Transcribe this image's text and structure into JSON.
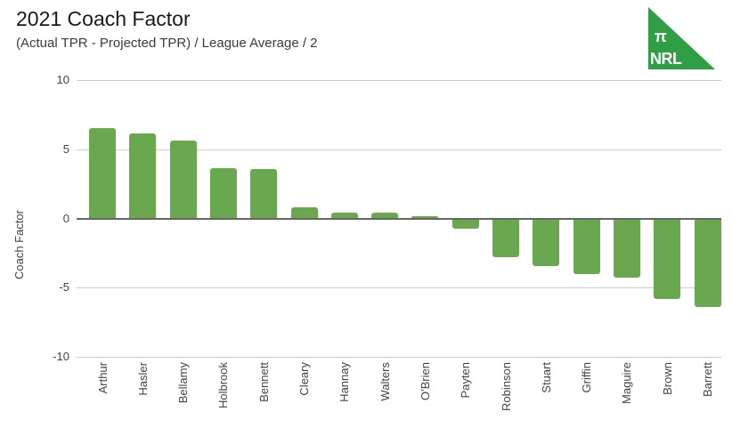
{
  "header": {
    "title": "2021 Coach Factor",
    "subtitle": "(Actual TPR - Projected TPR) / League Average / 2"
  },
  "logo": {
    "pi_symbol": "π",
    "text": "NRL",
    "color": "#2f9e44",
    "text_color": "#ffffff"
  },
  "chart_data": {
    "type": "bar",
    "title": "2021 Coach Factor",
    "subtitle": "(Actual TPR - Projected TPR) / League Average / 2",
    "xlabel": "",
    "ylabel": "Coach Factor",
    "ylim": [
      -10,
      10
    ],
    "yticks": [
      10,
      5,
      0,
      -5,
      -10
    ],
    "grid": true,
    "legend_position": "none",
    "bar_color": "#6aa84f",
    "gridline_color": "#cccccc",
    "baseline_color": "#666666",
    "categories": [
      "Arthur",
      "Hasler",
      "Bellamy",
      "Holbrook",
      "Bennett",
      "Cleary",
      "Hannay",
      "Walters",
      "O'Brien",
      "Payten",
      "Robinson",
      "Stuart",
      "Griffin",
      "Maguire",
      "Brown",
      "Barrett"
    ],
    "values": [
      6.5,
      6.15,
      5.6,
      3.65,
      3.55,
      0.8,
      0.4,
      0.4,
      0.15,
      -0.75,
      -2.8,
      -3.45,
      -4.0,
      -4.3,
      -5.85,
      -6.4
    ]
  }
}
